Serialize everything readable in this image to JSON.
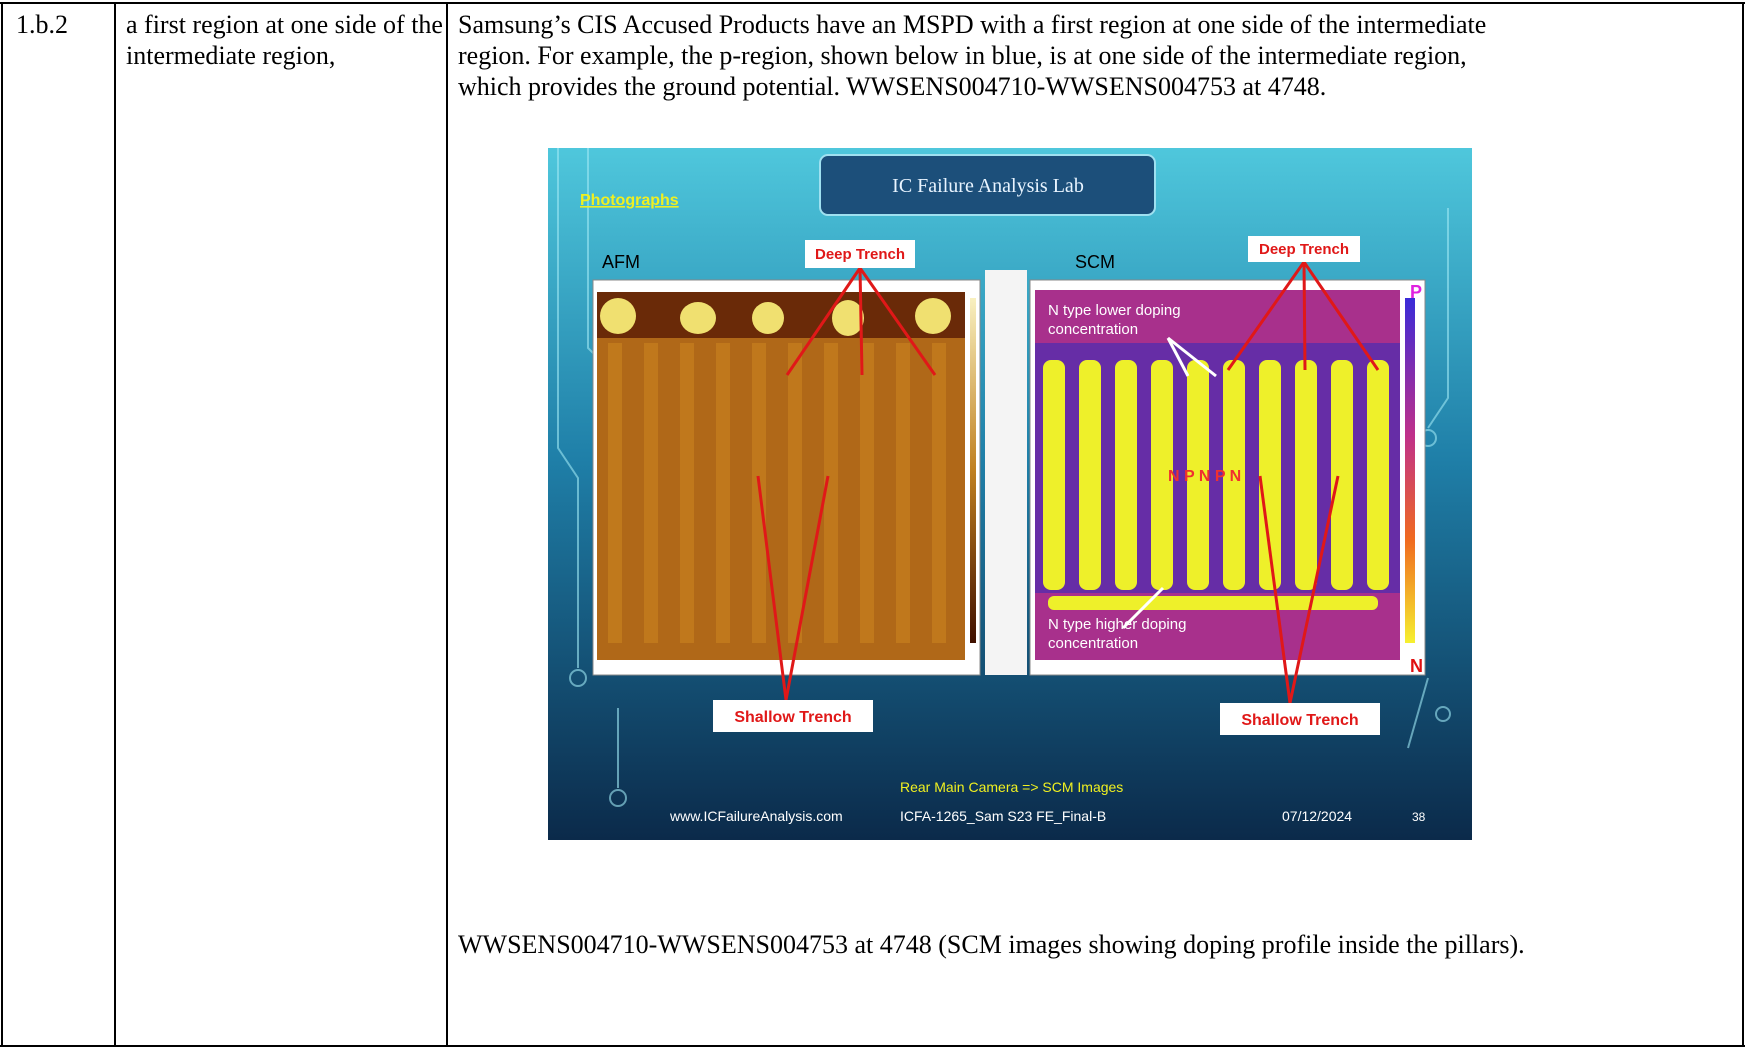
{
  "table": {
    "rows": [
      {
        "claim": "1.b.2",
        "element": "a first region at one side of the intermediate region,",
        "evidence": [
          "Samsung’s CIS Accused Products have an MSPD with a first region at one side of the intermediate region.  For example, the p-region, shown below in blue, is at one side of the intermediate region, which provides the ground potential.  WWSENS004710-WWSENS004753 at 4748.",
          "WWSENS004710-WWSENS004753 at 4748 (SCM images showing doping profile inside the pillars)."
        ]
      }
    ]
  },
  "figure": {
    "lab_title": "IC Failure Analysis Lab",
    "section": "Photographs",
    "left_label": "AFM",
    "right_label": "SCM",
    "deep_trench_left": "Deep Trench",
    "deep_trench_right": "Deep Trench",
    "shallow_trench_left": "Shallow Trench",
    "shallow_trench_right": "Shallow Trench",
    "lower_doping": [
      "N type lower doping",
      "concentration"
    ],
    "higher_doping": [
      "N type higher doping",
      "concentration"
    ],
    "pattern": "N P N P N",
    "scale_top": "P",
    "scale_bottom": "N",
    "caption": "Rear Main Camera => SCM Images",
    "website": "www.ICFailureAnalysis.com",
    "report": "ICFA-1265_Sam S23 FE_Final-B",
    "date": "07/12/2024",
    "page": "38"
  }
}
